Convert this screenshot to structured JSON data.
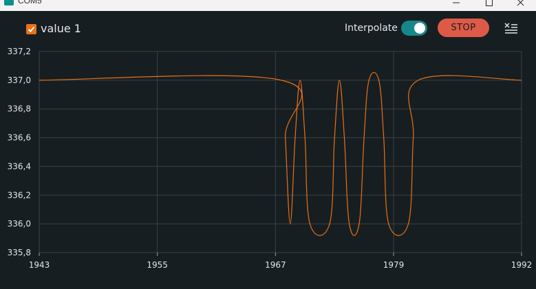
{
  "window": {
    "title": "COM5"
  },
  "toolbar": {
    "series_label": "value 1",
    "series_checked": true,
    "interpolate_label": "Interpolate",
    "interpolate_on": true,
    "stop_label": "STOP"
  },
  "colors": {
    "background": "#171e21",
    "series": "#e8711a",
    "toggle": "#17888a",
    "stop_button": "#dd5a49",
    "grid": "#3a4245"
  },
  "icons": {
    "app": "serial-plotter-app-icon",
    "checkbox": "checkmark-icon",
    "menu": "clear-output-menu-icon",
    "minimize": "minimize-icon",
    "maximize": "maximize-icon",
    "close": "close-icon"
  },
  "chart_data": {
    "type": "line",
    "xlim": [
      1943,
      1992
    ],
    "ylim": [
      335.8,
      337.2
    ],
    "x_ticks": [
      "1943",
      "1955",
      "1967",
      "1979",
      "1992"
    ],
    "y_ticks": [
      "337,2",
      "337,0",
      "336,8",
      "336,6",
      "336,4",
      "336,2",
      "336,0",
      "335,8"
    ],
    "grid": true,
    "series": [
      {
        "color": "#e8711a",
        "points": [
          [
            1943,
            337.0
          ],
          [
            1967.6,
            337.0
          ],
          [
            1968.0,
            336.6
          ],
          [
            1968.5,
            336.0
          ],
          [
            1969.0,
            336.6
          ],
          [
            1969.5,
            337.0
          ],
          [
            1970.0,
            336.6
          ],
          [
            1970.5,
            336.0
          ],
          [
            1972.5,
            336.0
          ],
          [
            1973.0,
            336.6
          ],
          [
            1973.5,
            337.0
          ],
          [
            1974.0,
            336.6
          ],
          [
            1974.5,
            336.0
          ],
          [
            1975.5,
            336.0
          ],
          [
            1976.0,
            336.6
          ],
          [
            1976.5,
            337.0
          ],
          [
            1977.5,
            337.0
          ],
          [
            1978.0,
            336.6
          ],
          [
            1978.5,
            336.0
          ],
          [
            1980.5,
            336.0
          ],
          [
            1981.0,
            336.6
          ],
          [
            1981.5,
            337.0
          ],
          [
            1992,
            337.0
          ]
        ]
      }
    ]
  }
}
